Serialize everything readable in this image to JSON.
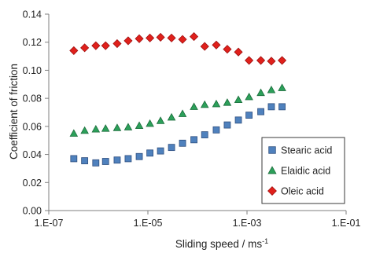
{
  "chart_data": {
    "type": "scatter",
    "xlabel": "Sliding speed / ms",
    "xlabel_sup": "-1",
    "ylabel": "Coefficient of friction",
    "x_scale": "log",
    "xlim": [
      1e-07,
      0.1
    ],
    "ylim": [
      0,
      0.14
    ],
    "x_ticks": [
      1e-07,
      1e-05,
      0.001,
      0.1
    ],
    "x_tick_labels": [
      "1.E-07",
      "1.E-05",
      "1.E-03",
      "1.E-01"
    ],
    "y_ticks": [
      0,
      0.02,
      0.04,
      0.06,
      0.08,
      0.1,
      0.12,
      0.14
    ],
    "y_tick_labels": [
      "0.00",
      "0.02",
      "0.04",
      "0.06",
      "0.08",
      "0.10",
      "0.12",
      "0.14"
    ],
    "grid": false,
    "legend_position": "bottom-right",
    "series": [
      {
        "name": "Stearic acid",
        "marker": "square",
        "color": "#4f81bd",
        "stroke": "#2f4f7f",
        "x": [
          3.2e-07,
          5.3e-07,
          8.9e-07,
          1.4e-06,
          2.4e-06,
          4e-06,
          6.7e-06,
          1.1e-05,
          1.8e-05,
          3e-05,
          5e-05,
          8.5e-05,
          0.00014,
          0.00024,
          0.0004,
          0.00067,
          0.0011,
          0.0019,
          0.0031,
          0.0051
        ],
        "y": [
          0.037,
          0.0355,
          0.034,
          0.035,
          0.036,
          0.037,
          0.0385,
          0.041,
          0.0425,
          0.045,
          0.048,
          0.0505,
          0.054,
          0.0575,
          0.061,
          0.0645,
          0.068,
          0.0705,
          0.074,
          0.074
        ]
      },
      {
        "name": "Elaidic acid",
        "marker": "triangle",
        "color": "#2ca05a",
        "stroke": "#1a6b3a",
        "x": [
          3.2e-07,
          5.3e-07,
          8.9e-07,
          1.4e-06,
          2.4e-06,
          4e-06,
          6.7e-06,
          1.1e-05,
          1.8e-05,
          3e-05,
          5e-05,
          8.5e-05,
          0.00014,
          0.00024,
          0.0004,
          0.00067,
          0.0011,
          0.0019,
          0.0031,
          0.0051
        ],
        "y": [
          0.055,
          0.057,
          0.058,
          0.0585,
          0.059,
          0.0595,
          0.0605,
          0.062,
          0.064,
          0.0665,
          0.069,
          0.074,
          0.0755,
          0.076,
          0.077,
          0.079,
          0.081,
          0.084,
          0.086,
          0.0875
        ]
      },
      {
        "name": "Oleic acid",
        "marker": "diamond",
        "color": "#e0201b",
        "stroke": "#a01010",
        "x": [
          3.2e-07,
          5.3e-07,
          8.9e-07,
          1.4e-06,
          2.4e-06,
          4e-06,
          6.7e-06,
          1.1e-05,
          1.8e-05,
          3e-05,
          5e-05,
          8.5e-05,
          0.00014,
          0.00024,
          0.0004,
          0.00067,
          0.0011,
          0.0019,
          0.0031,
          0.0051
        ],
        "y": [
          0.114,
          0.116,
          0.1175,
          0.1175,
          0.119,
          0.121,
          0.1225,
          0.123,
          0.1235,
          0.123,
          0.122,
          0.124,
          0.117,
          0.118,
          0.115,
          0.113,
          0.107,
          0.107,
          0.1065,
          0.107
        ]
      }
    ]
  }
}
